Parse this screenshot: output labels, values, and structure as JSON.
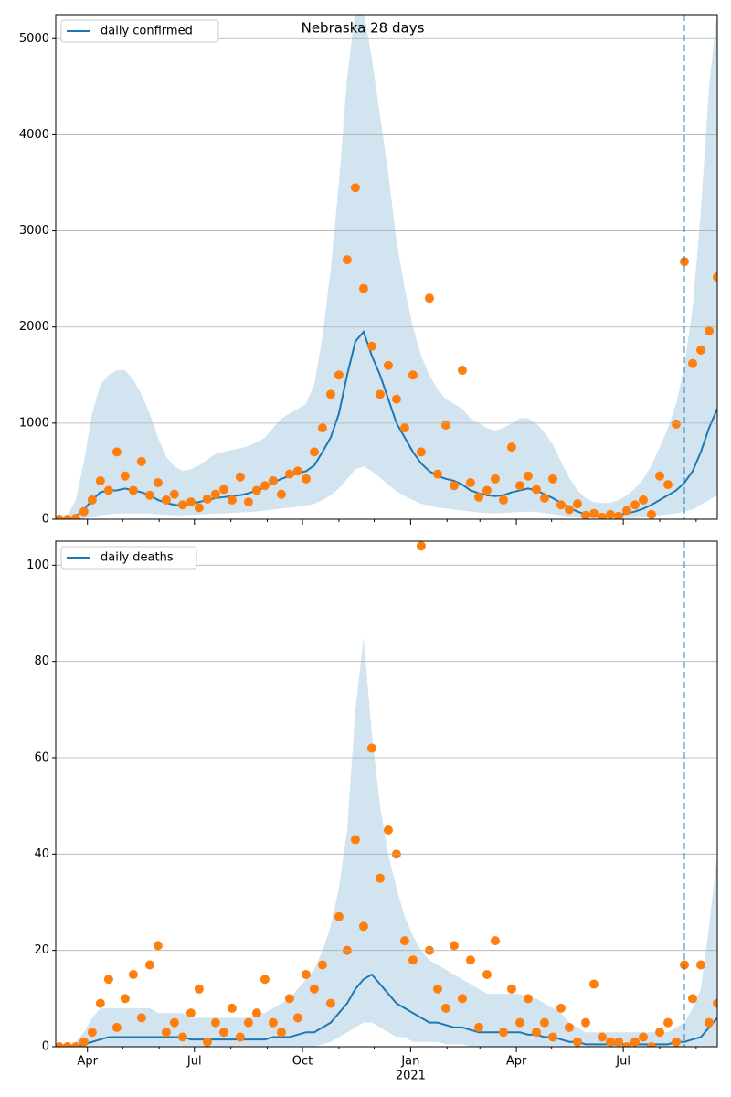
{
  "chart_data": [
    {
      "type": "line",
      "title": "Nebraska 28 days",
      "x": [
        "2020-03-08",
        "2020-03-15",
        "2020-03-22",
        "2020-03-29",
        "2020-04-05",
        "2020-04-12",
        "2020-04-19",
        "2020-04-26",
        "2020-05-03",
        "2020-05-10",
        "2020-05-17",
        "2020-05-24",
        "2020-05-31",
        "2020-06-07",
        "2020-06-14",
        "2020-06-21",
        "2020-06-28",
        "2020-07-05",
        "2020-07-12",
        "2020-07-19",
        "2020-07-26",
        "2020-08-02",
        "2020-08-09",
        "2020-08-16",
        "2020-08-23",
        "2020-08-30",
        "2020-09-06",
        "2020-09-13",
        "2020-09-20",
        "2020-09-27",
        "2020-10-04",
        "2020-10-11",
        "2020-10-18",
        "2020-10-25",
        "2020-11-01",
        "2020-11-08",
        "2020-11-15",
        "2020-11-22",
        "2020-11-29",
        "2020-12-06",
        "2020-12-13",
        "2020-12-20",
        "2020-12-27",
        "2021-01-03",
        "2021-01-10",
        "2021-01-17",
        "2021-01-24",
        "2021-01-31",
        "2021-02-07",
        "2021-02-14",
        "2021-02-21",
        "2021-02-28",
        "2021-03-07",
        "2021-03-14",
        "2021-03-21",
        "2021-03-28",
        "2021-04-04",
        "2021-04-11",
        "2021-04-18",
        "2021-04-25",
        "2021-05-02",
        "2021-05-09",
        "2021-05-16",
        "2021-05-23",
        "2021-05-30",
        "2021-06-06",
        "2021-06-13",
        "2021-06-20",
        "2021-06-27",
        "2021-07-04",
        "2021-07-11",
        "2021-07-18",
        "2021-07-25",
        "2021-08-01",
        "2021-08-08",
        "2021-08-15",
        "2021-08-22",
        "2021-08-29",
        "2021-09-05",
        "2021-09-12",
        "2021-09-19"
      ],
      "series": [
        {
          "name": "daily confirmed",
          "color": "#1f77b4",
          "values": [
            0,
            5,
            30,
            100,
            200,
            280,
            300,
            300,
            320,
            300,
            280,
            250,
            200,
            170,
            150,
            140,
            160,
            180,
            200,
            220,
            230,
            240,
            250,
            270,
            300,
            330,
            380,
            420,
            450,
            480,
            500,
            560,
            700,
            850,
            1100,
            1500,
            1850,
            1950,
            1700,
            1500,
            1250,
            1000,
            850,
            700,
            580,
            500,
            450,
            420,
            400,
            360,
            300,
            270,
            250,
            240,
            250,
            280,
            300,
            320,
            300,
            260,
            220,
            170,
            120,
            80,
            50,
            40,
            35,
            35,
            45,
            60,
            80,
            110,
            150,
            200,
            250,
            300,
            380,
            500,
            700,
            950,
            1150
          ],
          "band_upper": [
            0,
            40,
            200,
            600,
            1100,
            1400,
            1500,
            1550,
            1550,
            1450,
            1300,
            1100,
            850,
            650,
            550,
            500,
            520,
            560,
            620,
            680,
            700,
            720,
            740,
            760,
            800,
            850,
            950,
            1050,
            1100,
            1150,
            1200,
            1400,
            1900,
            2600,
            3500,
            4600,
            5300,
            5300,
            4800,
            4200,
            3600,
            2900,
            2400,
            2000,
            1700,
            1500,
            1350,
            1250,
            1200,
            1150,
            1050,
            1000,
            950,
            920,
            950,
            1000,
            1050,
            1050,
            1000,
            900,
            780,
            600,
            430,
            300,
            220,
            180,
            170,
            170,
            200,
            250,
            320,
            420,
            560,
            750,
            950,
            1200,
            1600,
            2200,
            3200,
            4500,
            5300
          ],
          "band_lower": [
            0,
            0,
            0,
            5,
            20,
            40,
            50,
            60,
            60,
            60,
            60,
            60,
            50,
            45,
            40,
            40,
            45,
            50,
            55,
            60,
            60,
            65,
            70,
            75,
            80,
            90,
            100,
            110,
            120,
            130,
            140,
            160,
            200,
            250,
            320,
            420,
            520,
            550,
            500,
            430,
            360,
            290,
            240,
            200,
            160,
            140,
            120,
            110,
            100,
            90,
            80,
            70,
            65,
            60,
            65,
            70,
            75,
            80,
            75,
            65,
            55,
            40,
            25,
            15,
            10,
            8,
            6,
            6,
            8,
            12,
            15,
            20,
            30,
            40,
            50,
            60,
            80,
            100,
            150,
            200,
            250
          ]
        }
      ],
      "observed": {
        "color": "#ff7f0e",
        "values": [
          0,
          0,
          10,
          80,
          200,
          400,
          300,
          700,
          450,
          300,
          600,
          250,
          380,
          200,
          260,
          150,
          180,
          120,
          210,
          260,
          310,
          200,
          440,
          180,
          300,
          350,
          400,
          260,
          470,
          500,
          420,
          700,
          950,
          1300,
          1500,
          2700,
          3450,
          2400,
          1800,
          1300,
          1600,
          1250,
          950,
          1500,
          700,
          2300,
          470,
          980,
          350,
          1550,
          380,
          230,
          300,
          420,
          200,
          750,
          350,
          450,
          310,
          220,
          420,
          150,
          100,
          160,
          40,
          60,
          20,
          50,
          30,
          90,
          150,
          200,
          50,
          450,
          360,
          990,
          2680,
          1620,
          1760,
          1960,
          2520
        ]
      },
      "xlim": [
        "2020-03-05",
        "2021-09-19"
      ],
      "xticks": [
        {
          "value": "2020-04-01",
          "label": "Apr"
        },
        {
          "value": "2020-07-01",
          "label": "Jul"
        },
        {
          "value": "2020-10-01",
          "label": "Oct"
        },
        {
          "value": "2021-01-01",
          "label": "Jan"
        },
        {
          "value": "2021-04-01",
          "label": "Apr"
        },
        {
          "value": "2021-07-01",
          "label": "Jul"
        }
      ],
      "show_xtick_labels": false,
      "xminorticks": [
        "2020-05-01",
        "2020-06-01",
        "2020-08-01",
        "2020-09-01",
        "2020-11-01",
        "2020-12-01",
        "2021-02-01",
        "2021-03-01",
        "2021-05-01",
        "2021-06-01",
        "2021-08-01",
        "2021-09-01"
      ],
      "ylim": [
        0,
        5250
      ],
      "yticks": [
        0,
        1000,
        2000,
        3000,
        4000,
        5000
      ],
      "grid": true,
      "legend": "upper left",
      "vline": {
        "x": "2021-08-22",
        "color": "#1f77b4"
      }
    },
    {
      "type": "line",
      "x": [
        "2020-03-08",
        "2020-03-15",
        "2020-03-22",
        "2020-03-29",
        "2020-04-05",
        "2020-04-12",
        "2020-04-19",
        "2020-04-26",
        "2020-05-03",
        "2020-05-10",
        "2020-05-17",
        "2020-05-24",
        "2020-05-31",
        "2020-06-07",
        "2020-06-14",
        "2020-06-21",
        "2020-06-28",
        "2020-07-05",
        "2020-07-12",
        "2020-07-19",
        "2020-07-26",
        "2020-08-02",
        "2020-08-09",
        "2020-08-16",
        "2020-08-23",
        "2020-08-30",
        "2020-09-06",
        "2020-09-13",
        "2020-09-20",
        "2020-09-27",
        "2020-10-04",
        "2020-10-11",
        "2020-10-18",
        "2020-10-25",
        "2020-11-01",
        "2020-11-08",
        "2020-11-15",
        "2020-11-22",
        "2020-11-29",
        "2020-12-06",
        "2020-12-13",
        "2020-12-20",
        "2020-12-27",
        "2021-01-03",
        "2021-01-10",
        "2021-01-17",
        "2021-01-24",
        "2021-01-31",
        "2021-02-07",
        "2021-02-14",
        "2021-02-21",
        "2021-02-28",
        "2021-03-07",
        "2021-03-14",
        "2021-03-21",
        "2021-03-28",
        "2021-04-04",
        "2021-04-11",
        "2021-04-18",
        "2021-04-25",
        "2021-05-02",
        "2021-05-09",
        "2021-05-16",
        "2021-05-23",
        "2021-05-30",
        "2021-06-06",
        "2021-06-13",
        "2021-06-20",
        "2021-06-27",
        "2021-07-04",
        "2021-07-11",
        "2021-07-18",
        "2021-07-25",
        "2021-08-01",
        "2021-08-08",
        "2021-08-15",
        "2021-08-22",
        "2021-08-29",
        "2021-09-05",
        "2021-09-12",
        "2021-09-19"
      ],
      "series": [
        {
          "name": "daily deaths",
          "color": "#1f77b4",
          "values": [
            0,
            0,
            0,
            0.5,
            1,
            1.5,
            2,
            2,
            2,
            2,
            2,
            2,
            2,
            2,
            2,
            2,
            1.5,
            1.5,
            1.5,
            1.5,
            1.5,
            1.5,
            1.5,
            1.5,
            1.5,
            1.5,
            2,
            2,
            2,
            2.5,
            3,
            3,
            4,
            5,
            7,
            9,
            12,
            14,
            15,
            13,
            11,
            9,
            8,
            7,
            6,
            5,
            5,
            4.5,
            4,
            4,
            3.5,
            3,
            3,
            3,
            3,
            3,
            3,
            2.5,
            2.5,
            2,
            2,
            1.5,
            1,
            1,
            0.5,
            0.5,
            0.5,
            0.5,
            0.5,
            0.5,
            0.5,
            0.5,
            0.5,
            0.5,
            0.5,
            1,
            1,
            1.5,
            2,
            4,
            6
          ],
          "band_upper": [
            0,
            0,
            1,
            3,
            6,
            8,
            8,
            8,
            8,
            8,
            8,
            8,
            7,
            7,
            7,
            7,
            6,
            6,
            6,
            6,
            6,
            6,
            6,
            6,
            7,
            7,
            8,
            9,
            10,
            12,
            14,
            16,
            20,
            25,
            33,
            45,
            70,
            85,
            65,
            50,
            40,
            33,
            27,
            23,
            20,
            18,
            17,
            16,
            15,
            14,
            13,
            12,
            11,
            11,
            11,
            11,
            11,
            10,
            10,
            9,
            8,
            7,
            5,
            4,
            3,
            3,
            3,
            3,
            3,
            3,
            3,
            3,
            3,
            3,
            3,
            4,
            5,
            8,
            12,
            25,
            40
          ],
          "band_lower": [
            0,
            0,
            0,
            0,
            0,
            0,
            0,
            0,
            0,
            0,
            0,
            0,
            0,
            0,
            0,
            0,
            0,
            0,
            0,
            0,
            0,
            0,
            0,
            0,
            0,
            0,
            0,
            0,
            0,
            0,
            0,
            0,
            0.5,
            1,
            2,
            3,
            4,
            5,
            5,
            4,
            3,
            2,
            2,
            1,
            1,
            1,
            1,
            0.5,
            0.5,
            0.5,
            0,
            0,
            0,
            0,
            0,
            0,
            0,
            0,
            0,
            0,
            0,
            0,
            0,
            0,
            0,
            0,
            0,
            0,
            0,
            0,
            0,
            0,
            0,
            0,
            0,
            0,
            0,
            0,
            0,
            0,
            0
          ]
        }
      ],
      "observed": {
        "color": "#ff7f0e",
        "values": [
          0,
          0,
          0,
          1,
          3,
          9,
          14,
          4,
          10,
          15,
          6,
          17,
          21,
          3,
          5,
          2,
          7,
          12,
          1,
          5,
          3,
          8,
          2,
          5,
          7,
          14,
          5,
          3,
          10,
          6,
          15,
          12,
          17,
          9,
          27,
          20,
          43,
          25,
          62,
          35,
          45,
          40,
          22,
          18,
          104,
          20,
          12,
          8,
          21,
          10,
          18,
          4,
          15,
          22,
          3,
          12,
          5,
          10,
          3,
          5,
          2,
          8,
          4,
          1,
          5,
          13,
          2,
          1,
          1,
          0,
          1,
          2,
          0,
          3,
          5,
          1,
          17,
          10,
          17,
          5,
          9
        ]
      },
      "xlim": [
        "2020-03-05",
        "2021-09-19"
      ],
      "xticks": [
        {
          "value": "2020-04-01",
          "label": "Apr"
        },
        {
          "value": "2020-07-01",
          "label": "Jul"
        },
        {
          "value": "2020-10-01",
          "label": "Oct"
        },
        {
          "value": "2021-01-01",
          "label": "Jan"
        },
        {
          "value": "2021-04-01",
          "label": "Apr"
        },
        {
          "value": "2021-07-01",
          "label": "Jul"
        }
      ],
      "show_xtick_labels": true,
      "year_label": {
        "value": "2021-01-01",
        "label": "2021"
      },
      "xminorticks": [
        "2020-05-01",
        "2020-06-01",
        "2020-08-01",
        "2020-09-01",
        "2020-11-01",
        "2020-12-01",
        "2021-02-01",
        "2021-03-01",
        "2021-05-01",
        "2021-06-01",
        "2021-08-01",
        "2021-09-01"
      ],
      "ylim": [
        0,
        105
      ],
      "yticks": [
        0,
        20,
        40,
        60,
        80,
        100
      ],
      "grid": true,
      "legend": "upper left",
      "vline": {
        "x": "2021-08-22",
        "color": "#1f77b4"
      }
    }
  ]
}
